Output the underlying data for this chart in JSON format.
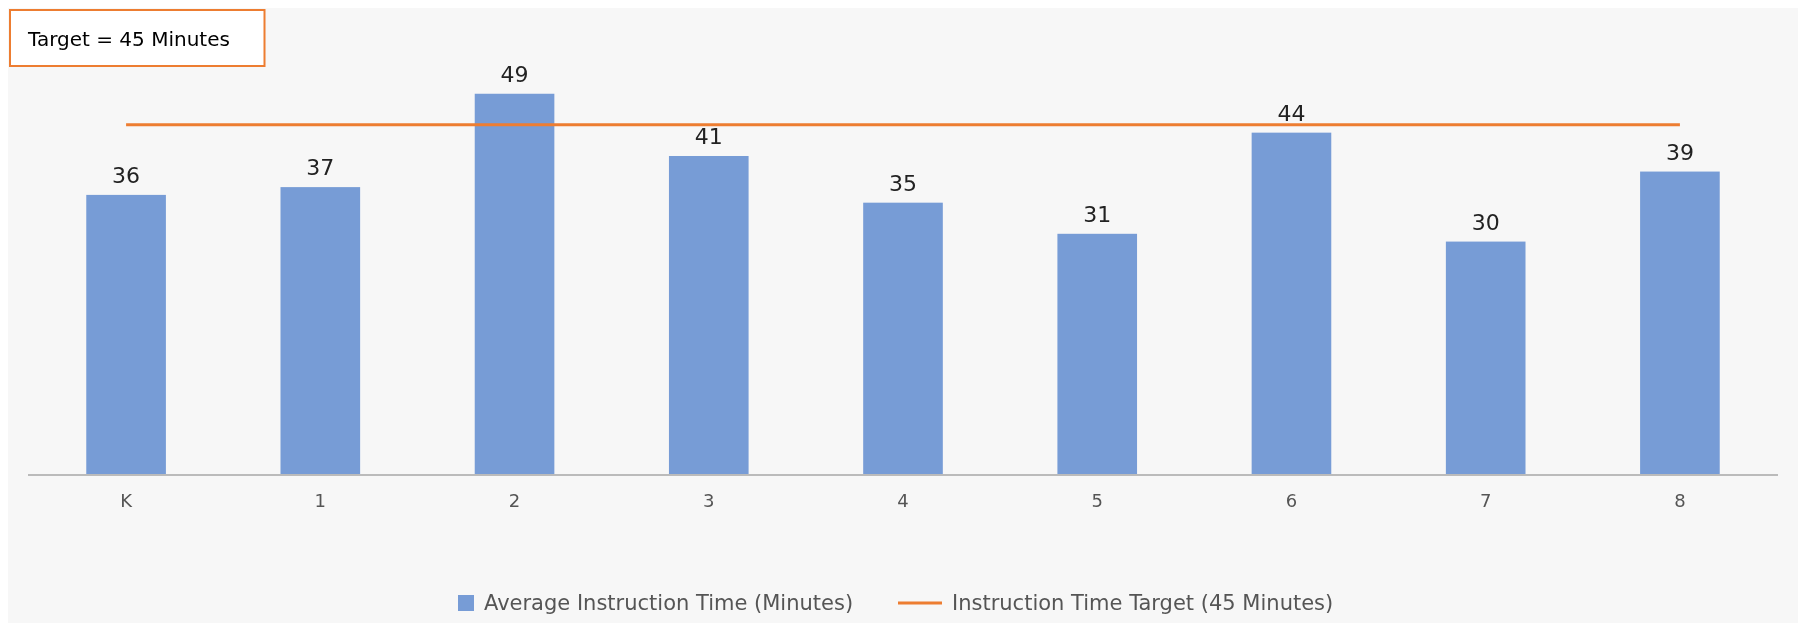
{
  "chart_data": {
    "type": "bar",
    "categories": [
      "K",
      "1",
      "2",
      "3",
      "4",
      "5",
      "6",
      "7",
      "8"
    ],
    "series": [
      {
        "name": "Average Instruction Time (Minutes)",
        "color": "#779cd6",
        "values": [
          36,
          37,
          49,
          41,
          35,
          31,
          44,
          30,
          39
        ],
        "value_labels": [
          "36",
          "37",
          "49",
          "41",
          "35",
          "31",
          "44",
          "30",
          "39"
        ]
      },
      {
        "name": "Instruction Time Target (45 Minutes)",
        "type": "line",
        "color": "#ed7d31",
        "values": [
          45,
          45,
          45,
          45,
          45,
          45,
          45,
          45,
          45
        ]
      }
    ],
    "annotations": [
      "Target = 45 Minutes"
    ],
    "legend": "bottom"
  }
}
